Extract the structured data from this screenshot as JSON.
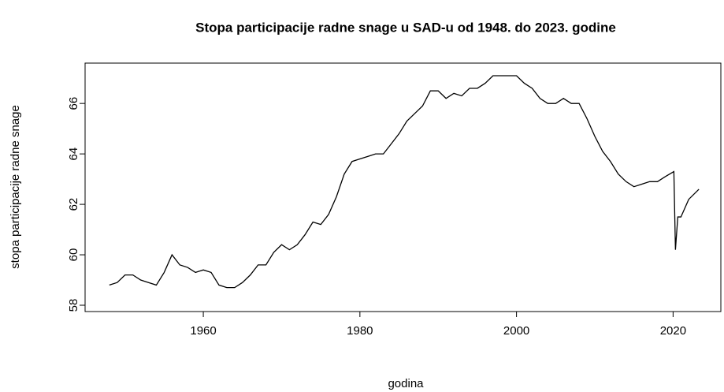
{
  "chart_data": {
    "type": "line",
    "title": "Stopa participacije radne snage u SAD-u od 1948. do 2023. godine",
    "xlabel": "godina",
    "ylabel": "stopa participacije radne snage",
    "x": [
      1948,
      1949,
      1950,
      1951,
      1952,
      1953,
      1954,
      1955,
      1956,
      1957,
      1958,
      1959,
      1960,
      1961,
      1962,
      1963,
      1964,
      1965,
      1966,
      1967,
      1968,
      1969,
      1970,
      1971,
      1972,
      1973,
      1974,
      1975,
      1976,
      1977,
      1978,
      1979,
      1980,
      1981,
      1982,
      1983,
      1984,
      1985,
      1986,
      1987,
      1988,
      1989,
      1990,
      1991,
      1992,
      1993,
      1994,
      1995,
      1996,
      1997,
      1998,
      1999,
      2000,
      2001,
      2002,
      2003,
      2004,
      2005,
      2006,
      2007,
      2008,
      2009,
      2010,
      2011,
      2012,
      2013,
      2014,
      2015,
      2016,
      2017,
      2018,
      2019,
      2020.1,
      2020.3,
      2020.6,
      2021,
      2022,
      2023.3
    ],
    "series": [
      {
        "name": "stopa participacije radne snage",
        "color": "#000000",
        "values": [
          58.8,
          58.9,
          59.2,
          59.2,
          59.0,
          58.9,
          58.8,
          59.3,
          60.0,
          59.6,
          59.5,
          59.3,
          59.4,
          59.3,
          58.8,
          58.7,
          58.7,
          58.9,
          59.2,
          59.6,
          59.6,
          60.1,
          60.4,
          60.2,
          60.4,
          60.8,
          61.3,
          61.2,
          61.6,
          62.3,
          63.2,
          63.7,
          63.8,
          63.9,
          64.0,
          64.0,
          64.4,
          64.8,
          65.3,
          65.6,
          65.9,
          66.5,
          66.5,
          66.2,
          66.4,
          66.3,
          66.6,
          66.6,
          66.8,
          67.1,
          67.1,
          67.1,
          67.1,
          66.8,
          66.6,
          66.2,
          66.0,
          66.0,
          66.2,
          66.0,
          66.0,
          65.4,
          64.7,
          64.1,
          63.7,
          63.2,
          62.9,
          62.7,
          62.8,
          62.9,
          62.9,
          63.1,
          63.3,
          60.2,
          61.5,
          61.5,
          62.2,
          62.6
        ]
      }
    ],
    "xlim": [
      1944.9,
      2026.1
    ],
    "xticks": [
      1960,
      1980,
      2000,
      2020
    ],
    "ylim": [
      57.75,
      67.6
    ],
    "yticks": [
      58,
      60,
      62,
      64,
      66
    ]
  }
}
